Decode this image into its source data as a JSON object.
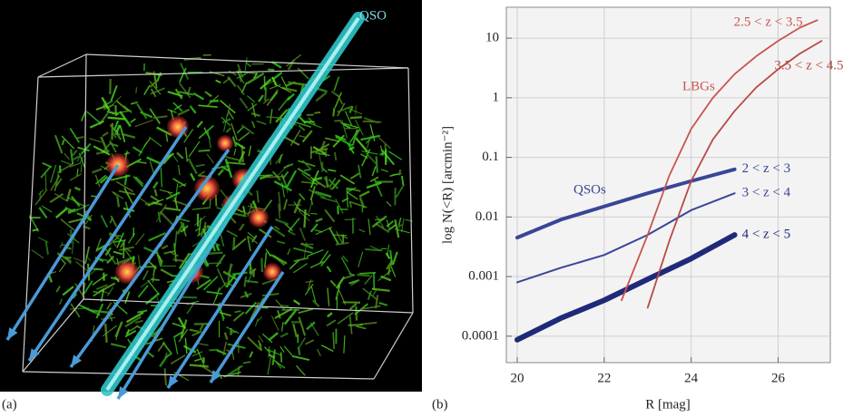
{
  "panel_a": {
    "label": "(a)",
    "beam_label": "QSO"
  },
  "panel_b_label": "(b)",
  "chart_data": {
    "type": "line",
    "x_label": "R [mag]",
    "y_label": "log N(<R) [arcmin⁻²]",
    "xlim": [
      19.75,
      27.2
    ],
    "xticks": [
      20,
      22,
      24,
      26
    ],
    "ylim": [
      3.6e-05,
      33
    ],
    "yticks": [
      0.0001,
      0.001,
      0.01,
      0.1,
      1,
      10
    ],
    "log_y": true,
    "grid": true,
    "annotations": [
      "QSOs",
      "LBGs"
    ],
    "series": [
      {
        "name": "2 < z < 3",
        "color": "#3a4597",
        "width": 4,
        "x": [
          20,
          21,
          22,
          23,
          24,
          25
        ],
        "values": [
          0.0045,
          0.009,
          0.015,
          0.025,
          0.04,
          0.063
        ]
      },
      {
        "name": "3 < z < 4",
        "color": "#3a4597",
        "width": 2,
        "x": [
          20,
          21,
          22,
          23,
          24,
          25
        ],
        "values": [
          0.0008,
          0.0014,
          0.0023,
          0.005,
          0.013,
          0.025
        ]
      },
      {
        "name": "4 < z < 5",
        "color": "#1f2a78",
        "width": 6,
        "x": [
          20,
          21,
          22,
          23,
          24,
          25
        ],
        "values": [
          8.7e-05,
          0.0002,
          0.0004,
          0.0009,
          0.002,
          0.005
        ]
      },
      {
        "name": "2.5 < z < 3.5",
        "color": "#c8554f",
        "width": 1.8,
        "x": [
          22.4,
          23,
          23.5,
          24,
          24.5,
          25,
          25.5,
          26,
          26.5,
          26.9
        ],
        "values": [
          0.0004,
          0.005,
          0.05,
          0.3,
          1,
          2.5,
          5,
          9,
          15,
          20
        ]
      },
      {
        "name": "3.5 < z < 4.5",
        "color": "#b84a44",
        "width": 1.8,
        "x": [
          23,
          23.5,
          24,
          24.5,
          25,
          25.5,
          26,
          26.5,
          27
        ],
        "values": [
          0.0003,
          0.004,
          0.04,
          0.2,
          0.6,
          1.5,
          3,
          5.5,
          9
        ]
      }
    ]
  }
}
